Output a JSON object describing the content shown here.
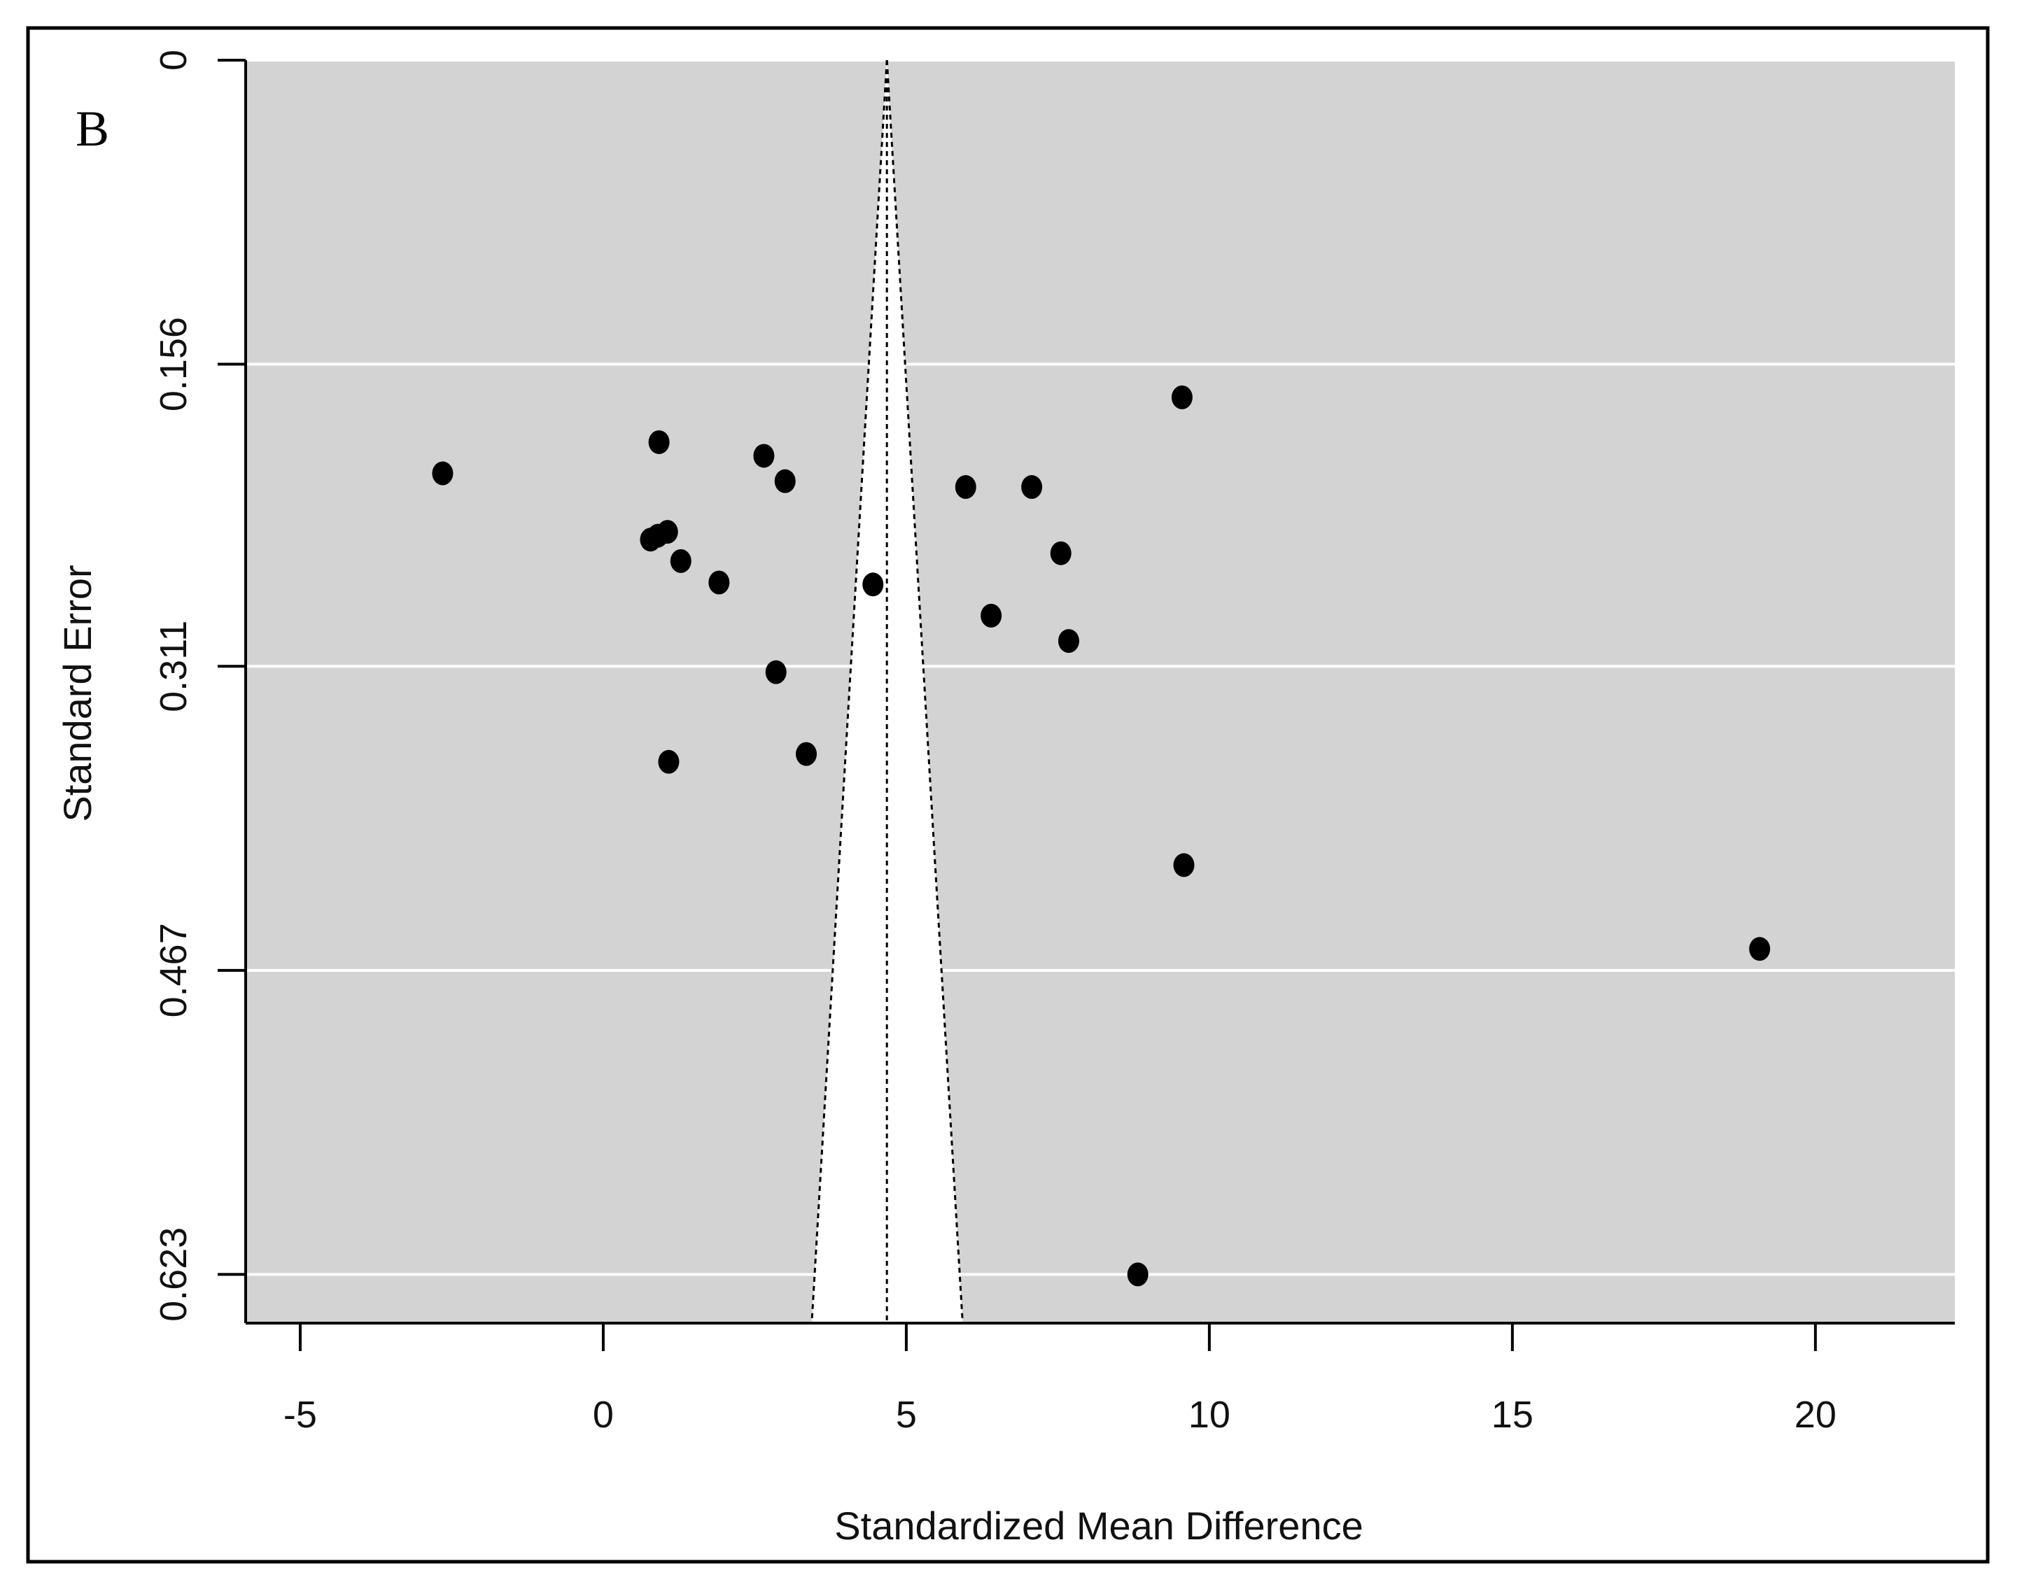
{
  "panel_label": "B",
  "chart_data": {
    "type": "scatter",
    "subtype": "funnel plot",
    "title": "",
    "xlabel": "Standardized Mean Difference",
    "ylabel": "Standard Error",
    "x_ticks": [
      -5,
      0,
      5,
      10,
      15,
      20
    ],
    "x_tick_labels": [
      "-5",
      "0",
      "5",
      "10",
      "15",
      "20"
    ],
    "xlim": [
      -5.9,
      22.3
    ],
    "y_ticks": [
      0,
      0.156,
      0.311,
      0.467,
      0.623
    ],
    "y_tick_labels": [
      "0",
      "0.156",
      "0.311",
      "0.467",
      "0.623"
    ],
    "ylim": [
      0,
      0.648
    ],
    "y_reversed": true,
    "grid": "horizontal",
    "background_color": "#d3d3d3",
    "grid_color": "#ffffff",
    "point_color": "#000000",
    "funnel_fill": "#ffffff",
    "summary_estimate": 4.68,
    "funnel_bottom": [
      3.44,
      5.93
    ],
    "points": [
      {
        "x": -2.65,
        "y": 0.212
      },
      {
        "x": 0.92,
        "y": 0.196
      },
      {
        "x": 2.65,
        "y": 0.203
      },
      {
        "x": 3.0,
        "y": 0.216
      },
      {
        "x": 9.55,
        "y": 0.173
      },
      {
        "x": 5.98,
        "y": 0.219
      },
      {
        "x": 7.07,
        "y": 0.219
      },
      {
        "x": 0.78,
        "y": 0.246
      },
      {
        "x": 0.9,
        "y": 0.244
      },
      {
        "x": 1.06,
        "y": 0.242
      },
      {
        "x": 1.28,
        "y": 0.257
      },
      {
        "x": 1.91,
        "y": 0.268
      },
      {
        "x": 4.45,
        "y": 0.269
      },
      {
        "x": 7.55,
        "y": 0.253
      },
      {
        "x": 6.4,
        "y": 0.285
      },
      {
        "x": 7.68,
        "y": 0.298
      },
      {
        "x": 2.85,
        "y": 0.314
      },
      {
        "x": 3.35,
        "y": 0.356
      },
      {
        "x": 1.08,
        "y": 0.36
      },
      {
        "x": 9.58,
        "y": 0.413
      },
      {
        "x": 19.08,
        "y": 0.456
      },
      {
        "x": 8.82,
        "y": 0.623
      }
    ]
  }
}
